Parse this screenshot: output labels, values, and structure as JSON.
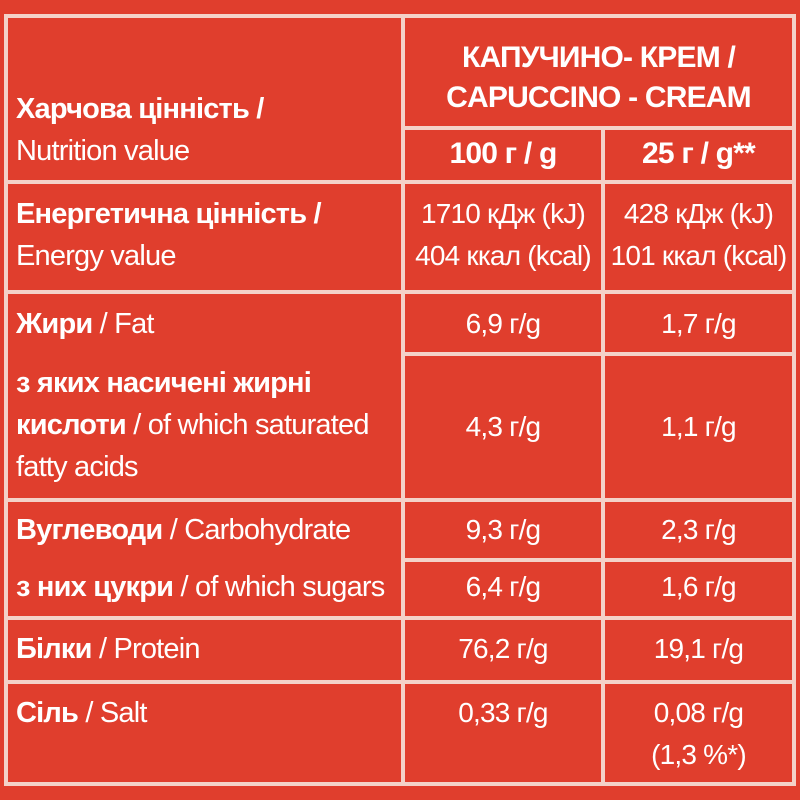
{
  "header": {
    "product_line1": "КАПУЧИНО- КРЕМ /",
    "product_line2": "CAPUCCINO - CREAM",
    "nutrition_uk": "Харчова цінність /",
    "nutrition_en": "Nutrition value",
    "col1": "100 г / g",
    "col2": "25 г / g**"
  },
  "rows": {
    "energy": {
      "label_uk": "Енергетична цінність /",
      "label_en": "Energy value",
      "v100_a": "1710 кДж (kJ)",
      "v100_b": "404 ккал (kcal)",
      "v25_a": "428 кДж (kJ)",
      "v25_b": "101 ккал (kcal)"
    },
    "fat": {
      "label_uk": "Жири",
      "label_en": "/ Fat",
      "v100": "6,9 г/g",
      "v25": "1,7 г/g"
    },
    "saturated": {
      "label_uk1": "з яких насичені жирні",
      "label_uk2": "кислоти",
      "label_en1": "/ of which saturated",
      "label_en2": "fatty acids",
      "v100": "4,3 г/g",
      "v25": "1,1 г/g"
    },
    "carbs": {
      "label_uk": "Вуглеводи",
      "label_en": "/ Carbohydrate",
      "v100": "9,3 г/g",
      "v25": "2,3 г/g"
    },
    "sugars": {
      "label_uk": "з них цукри",
      "label_en": "/ of which sugars",
      "v100": "6,4 г/g",
      "v25": "1,6 г/g"
    },
    "protein": {
      "label_uk": "Білки",
      "label_en": "/ Protein",
      "v100": "76,2 г/g",
      "v25": "19,1 г/g"
    },
    "salt": {
      "label_uk": "Сіль",
      "label_en": "/ Salt",
      "v100": "0,33 г/g",
      "v25_a": "0,08 г/g",
      "v25_b": "(1,3 %*)"
    }
  },
  "colors": {
    "background": "#e03e2d",
    "border": "#f4d2c8",
    "text": "#ffffff"
  }
}
